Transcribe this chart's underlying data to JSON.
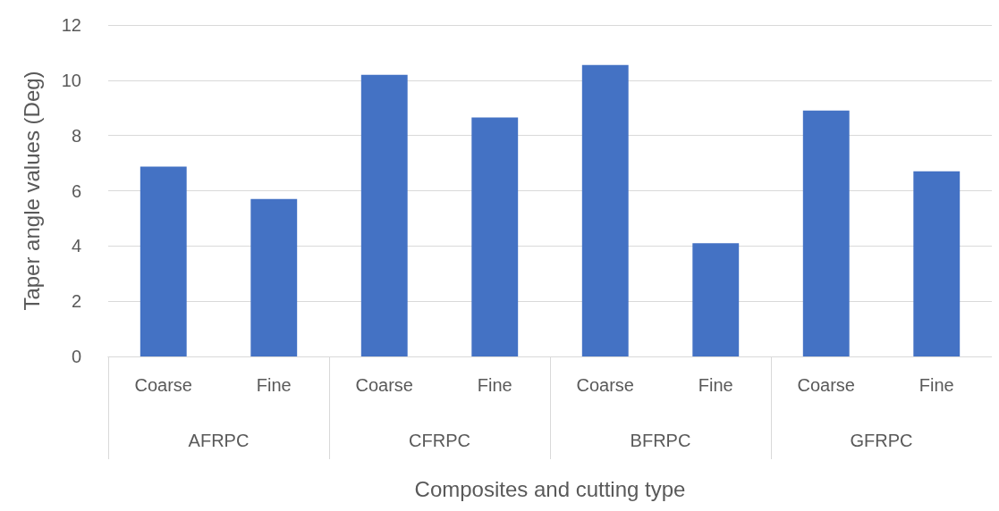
{
  "chart_data": {
    "type": "bar",
    "xlabel": "Composites and cutting type",
    "ylabel": "Taper angle values (Deg)",
    "categories": [
      "Coarse",
      "Fine",
      "Coarse",
      "Fine",
      "Coarse",
      "Fine",
      "Coarse",
      "Fine"
    ],
    "annotations": [
      "AFRPC",
      "CFRPC",
      "BFRPC",
      "GFRPC"
    ],
    "values": [
      6.87,
      5.7,
      10.2,
      8.65,
      10.55,
      4.1,
      8.9,
      6.7
    ],
    "color": "#4472c4",
    "ylim": [
      0,
      12
    ],
    "yticks": [
      0,
      2,
      4,
      6,
      8,
      10,
      12
    ],
    "grid": "y"
  }
}
